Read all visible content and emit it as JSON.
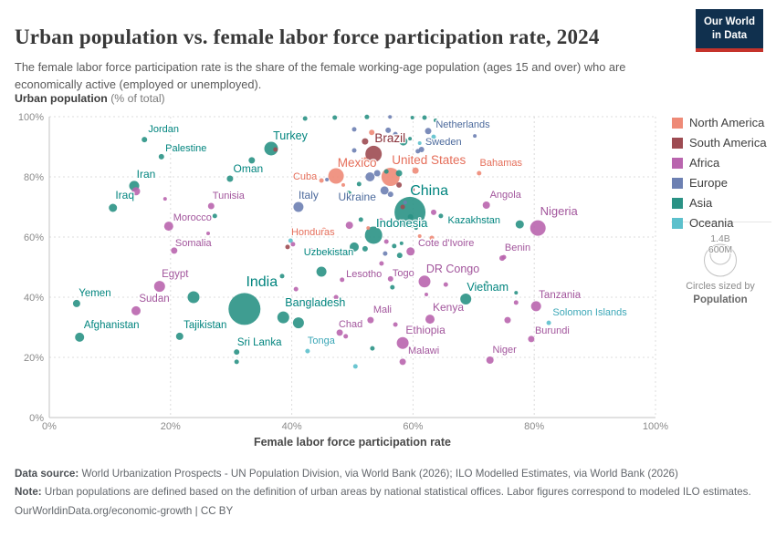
{
  "header": {
    "title": "Urban population vs. female labor force participation rate, 2024",
    "subtitle": "The female labor force participation rate is the share of the female working-age population (ages 15 and over) who are economically active (employed or unemployed)."
  },
  "logo": {
    "line1": "Our World",
    "line2": "in Data",
    "bg_color": "#10304e",
    "bar_color": "#c5332b"
  },
  "y_axis_title": {
    "bold": "Urban population",
    "rest": " (% of total)"
  },
  "regions": {
    "na": {
      "label": "North America",
      "fill": "#EE8A77",
      "text": "#E56E5A"
    },
    "sa": {
      "label": "South America",
      "fill": "#9D4B52",
      "text": "#883039"
    },
    "af": {
      "label": "Africa",
      "fill": "#B965AE",
      "text": "#A2559C"
    },
    "eu": {
      "label": "Europe",
      "fill": "#6D80B2",
      "text": "#4C6A9C"
    },
    "as": {
      "label": "Asia",
      "fill": "#2A9285",
      "text": "#00847E"
    },
    "oc": {
      "label": "Oceania",
      "fill": "#5CC0CC",
      "text": "#3BA7B7"
    }
  },
  "legend": {
    "items": [
      {
        "key": "na",
        "label": "North America"
      },
      {
        "key": "sa",
        "label": "South America"
      },
      {
        "key": "af",
        "label": "Africa"
      },
      {
        "key": "eu",
        "label": "Europe"
      },
      {
        "key": "as",
        "label": "Asia"
      },
      {
        "key": "oc",
        "label": "Oceania"
      }
    ]
  },
  "size_legend": {
    "big_label": "1.4B",
    "small_label": "600M",
    "caption_line1": "Circles sized by",
    "caption_line2": "Population"
  },
  "chart_data": {
    "type": "scatter",
    "title": "Urban population vs. female labor force participation rate, 2024",
    "xlabel": "Female labor force participation rate",
    "ylabel": "Urban population (% of total)",
    "xlim": [
      0,
      100
    ],
    "ylim": [
      0,
      100
    ],
    "xticks": [
      0,
      20,
      40,
      60,
      80,
      100
    ],
    "yticks": [
      0,
      20,
      40,
      60,
      80,
      100
    ],
    "tick_suffix": "%",
    "grid": "dashed",
    "legend_position": "right",
    "point_format": [
      "country",
      "x_flfp_pct",
      "y_urban_pct",
      "radius_px",
      "region",
      "label_dx",
      "label_dy",
      "label_font_px"
    ],
    "points": [
      [
        "Jordan",
        15.7,
        92.4,
        3,
        "as",
        21,
        -8,
        11
      ],
      [
        "Palestine",
        18.5,
        86.7,
        3,
        "as",
        27,
        -6,
        11
      ],
      [
        "Iran",
        14.0,
        77.0,
        5.5,
        "as",
        13,
        -9,
        12
      ],
      [
        "Iraq",
        10.5,
        69.7,
        4.5,
        "as",
        13,
        -10,
        12
      ],
      [
        "Oman",
        29.8,
        79.4,
        3.5,
        "as",
        20,
        -7,
        12
      ],
      [
        "Tunisia",
        26.7,
        70.3,
        3.5,
        "af",
        19,
        -8,
        11
      ],
      [
        "Morocco",
        19.7,
        63.6,
        5,
        "af",
        26,
        -6,
        11
      ],
      [
        "Somalia",
        20.6,
        55.5,
        3.5,
        "af",
        21,
        -5,
        11
      ],
      [
        "Turkey",
        36.6,
        89.4,
        7.5,
        "as",
        21,
        -10,
        12.5
      ],
      [
        "Cuba",
        44.9,
        78.8,
        2.5,
        "na",
        -18,
        -1,
        11
      ],
      [
        "Mexico",
        47.3,
        80.3,
        8.5,
        "na",
        23,
        -10,
        13.5
      ],
      [
        "Italy",
        41.1,
        70.0,
        5.5,
        "eu",
        11,
        -9,
        12
      ],
      [
        "Ukraine",
        55.3,
        75.5,
        4.5,
        "eu",
        -30,
        11,
        12
      ],
      [
        "Honduras",
        45.3,
        62.4,
        2.5,
        "na",
        -12,
        6,
        11
      ],
      [
        "Uzbekistan",
        50.3,
        56.7,
        5,
        "as",
        -28,
        9,
        11
      ],
      [
        "Brazil",
        53.5,
        87.6,
        9,
        "sa",
        18,
        -13,
        13.5
      ],
      [
        "United States",
        56.3,
        80.0,
        10,
        "na",
        42,
        -14,
        13.5
      ],
      [
        "Netherlands",
        62.5,
        95.2,
        3.5,
        "eu",
        38,
        -4,
        11
      ],
      [
        "Sweden",
        61.4,
        89.1,
        3,
        "eu",
        24,
        -5,
        11
      ],
      [
        "Bahamas",
        70.9,
        81.2,
        2.5,
        "na",
        24,
        -8,
        11
      ],
      [
        "China",
        59.5,
        68.2,
        17,
        "as",
        21,
        -19,
        16
      ],
      [
        "Angola",
        72.1,
        70.6,
        4,
        "af",
        21,
        -8,
        11
      ],
      [
        "Nigeria",
        80.6,
        63.0,
        8.5,
        "af",
        23,
        -14,
        13
      ],
      [
        "Kazakhstan",
        77.6,
        64.2,
        4.5,
        "as",
        -50,
        -1,
        11
      ],
      [
        "Indonesia",
        53.5,
        60.6,
        9.5,
        "as",
        31,
        -9,
        13
      ],
      [
        "Cote d'Ivoire",
        59.6,
        55.2,
        4.5,
        "af",
        39,
        -6,
        11
      ],
      [
        "Benin",
        74.7,
        53.0,
        3,
        "af",
        17,
        -8,
        11
      ],
      [
        "DR Congo",
        61.9,
        45.2,
        6.5,
        "af",
        31,
        -10,
        12.5
      ],
      [
        "Vietnam",
        68.7,
        39.4,
        6,
        "as",
        24,
        -9,
        12.5
      ],
      [
        "Kenya",
        62.8,
        32.7,
        5,
        "af",
        20,
        -9,
        12
      ],
      [
        "Tanzania",
        80.3,
        37.0,
        5.5,
        "af",
        26,
        -9,
        11.5
      ],
      [
        "Solomon Islands",
        82.4,
        31.5,
        2.5,
        "oc",
        45,
        -8,
        11
      ],
      [
        "Burundi",
        79.5,
        26.1,
        3.5,
        "af",
        23,
        -6,
        11
      ],
      [
        "Niger",
        72.7,
        19.1,
        4,
        "af",
        16,
        -8,
        11
      ],
      [
        "Malawi",
        58.3,
        18.5,
        3.5,
        "af",
        23,
        -9,
        11
      ],
      [
        "Ethiopia",
        58.3,
        24.8,
        6.5,
        "af",
        25,
        -10,
        12
      ],
      [
        "Mali",
        53.0,
        32.4,
        3.5,
        "af",
        13,
        -8,
        11
      ],
      [
        "Togo",
        56.3,
        46.1,
        3,
        "af",
        14,
        -3,
        11
      ],
      [
        "Lesotho",
        48.3,
        45.8,
        2.5,
        "af",
        24,
        -3,
        11
      ],
      [
        "Egypt",
        18.2,
        43.6,
        6,
        "af",
        17,
        -10,
        11.5
      ],
      [
        "Yemen",
        4.5,
        37.9,
        4,
        "as",
        20,
        -8,
        11.5
      ],
      [
        "Sudan",
        14.3,
        35.5,
        5,
        "af",
        20,
        -10,
        11.5
      ],
      [
        "Afghanistan",
        5.0,
        26.7,
        5,
        "as",
        35,
        -10,
        11.5
      ],
      [
        "Tajikistan",
        21.5,
        27.0,
        4,
        "as",
        28,
        -9,
        11.5
      ],
      [
        "India",
        32.2,
        36.1,
        17.5,
        "as",
        19,
        -25,
        16
      ],
      [
        "Sri Lanka",
        30.9,
        21.8,
        3,
        "as",
        25,
        -7,
        11.5
      ],
      [
        "Bangladesh",
        38.6,
        33.3,
        6.5,
        "as",
        35,
        -12,
        12.5
      ],
      [
        "Tonga",
        42.6,
        22.1,
        2.5,
        "oc",
        15,
        -8,
        11
      ],
      [
        "Chad",
        47.9,
        28.2,
        3.5,
        "af",
        12,
        -6,
        11
      ],
      [
        "",
        42.2,
        99.4,
        2.5,
        "as"
      ],
      [
        "",
        47.1,
        99.7,
        2.5,
        "as"
      ],
      [
        "",
        52.4,
        99.9,
        2.5,
        "as"
      ],
      [
        "",
        56.2,
        99.9,
        2,
        "eu"
      ],
      [
        "",
        59.9,
        99.7,
        2,
        "as"
      ],
      [
        "",
        61.9,
        99.7,
        2.5,
        "as"
      ],
      [
        "",
        63.7,
        98.8,
        2,
        "as"
      ],
      [
        "",
        70.2,
        93.6,
        2,
        "eu"
      ],
      [
        "",
        50.3,
        95.8,
        2.5,
        "eu"
      ],
      [
        "",
        53.2,
        94.8,
        3,
        "na"
      ],
      [
        "",
        55.9,
        95.5,
        3,
        "eu"
      ],
      [
        "",
        57.1,
        94.2,
        2.5,
        "eu"
      ],
      [
        "",
        58.4,
        91.8,
        4.5,
        "as"
      ],
      [
        "",
        59.5,
        92.7,
        2,
        "as"
      ],
      [
        "",
        52.1,
        91.8,
        3.5,
        "sa"
      ],
      [
        "",
        50.3,
        88.8,
        2.5,
        "eu"
      ],
      [
        "",
        52.1,
        85.8,
        2.5,
        "na"
      ],
      [
        "",
        60.8,
        88.5,
        2.5,
        "eu"
      ],
      [
        "",
        37.3,
        89.1,
        2.5,
        "sa"
      ],
      [
        "",
        61.1,
        91.2,
        2,
        "oc"
      ],
      [
        "",
        63.4,
        93.3,
        2.5,
        "oc"
      ],
      [
        "",
        60.4,
        82.1,
        3.5,
        "na"
      ],
      [
        "",
        52.9,
        80.0,
        5,
        "eu"
      ],
      [
        "",
        54.1,
        81.2,
        3.5,
        "eu"
      ],
      [
        "",
        55.6,
        81.8,
        2.5,
        "as"
      ],
      [
        "",
        57.7,
        81.2,
        3.5,
        "as"
      ],
      [
        "",
        51.1,
        77.6,
        2.5,
        "as"
      ],
      [
        "",
        49.4,
        74.5,
        3,
        "as"
      ],
      [
        "",
        56.3,
        74.2,
        3,
        "eu"
      ],
      [
        "",
        57.7,
        77.3,
        3,
        "sa"
      ],
      [
        "",
        59.9,
        75.8,
        2.5,
        "sa"
      ],
      [
        "",
        45.8,
        79.1,
        2,
        "eu"
      ],
      [
        "",
        48.5,
        77.3,
        2,
        "na"
      ],
      [
        "",
        33.4,
        85.5,
        3.5,
        "as"
      ],
      [
        "",
        14.3,
        75.2,
        4.5,
        "af"
      ],
      [
        "",
        19.1,
        72.7,
        2,
        "af"
      ],
      [
        "",
        27.3,
        67.0,
        2.5,
        "as"
      ],
      [
        "",
        26.2,
        61.2,
        2,
        "af"
      ],
      [
        "",
        63.4,
        68.2,
        3,
        "af"
      ],
      [
        "",
        64.6,
        67.0,
        2.5,
        "as"
      ],
      [
        "",
        58.3,
        70.0,
        2.5,
        "sa"
      ],
      [
        "",
        58.7,
        71.5,
        2,
        "eu"
      ],
      [
        "",
        49.5,
        63.9,
        4,
        "af"
      ],
      [
        "",
        51.4,
        65.8,
        2.5,
        "as"
      ],
      [
        "",
        52.6,
        63.0,
        2,
        "na"
      ],
      [
        "",
        54.7,
        65.5,
        2.5,
        "af"
      ],
      [
        "",
        59.6,
        66.7,
        3,
        "as"
      ],
      [
        "",
        60.5,
        63.0,
        2,
        "as"
      ],
      [
        "",
        61.1,
        60.3,
        2,
        "na"
      ],
      [
        "",
        63.1,
        59.7,
        2.5,
        "na"
      ],
      [
        "",
        52.1,
        56.1,
        3,
        "as"
      ],
      [
        "",
        55.6,
        58.5,
        2.5,
        "af"
      ],
      [
        "",
        56.9,
        57.0,
        2.5,
        "as"
      ],
      [
        "",
        58.1,
        57.9,
        2,
        "as"
      ],
      [
        "",
        57.8,
        53.9,
        3,
        "as"
      ],
      [
        "",
        55.4,
        54.5,
        2.5,
        "eu"
      ],
      [
        "",
        54.8,
        51.2,
        2.5,
        "af"
      ],
      [
        "",
        39.8,
        58.8,
        2.5,
        "oc"
      ],
      [
        "",
        39.3,
        56.7,
        2.5,
        "sa"
      ],
      [
        "",
        40.2,
        57.6,
        2.5,
        "af"
      ],
      [
        "",
        43.2,
        55.8,
        2,
        "af"
      ],
      [
        "",
        23.8,
        40.0,
        6.5,
        "as"
      ],
      [
        "",
        44.9,
        48.5,
        5.5,
        "as"
      ],
      [
        "",
        38.4,
        47.0,
        2.5,
        "as"
      ],
      [
        "",
        40.7,
        42.7,
        2.5,
        "af"
      ],
      [
        "",
        59.2,
        47.3,
        1.5,
        "na"
      ],
      [
        "",
        56.6,
        43.3,
        2.5,
        "as"
      ],
      [
        "",
        65.4,
        44.2,
        2.5,
        "af"
      ],
      [
        "",
        62.2,
        40.9,
        2,
        "af"
      ],
      [
        "",
        72.1,
        44.8,
        2,
        "as"
      ],
      [
        "",
        75.0,
        53.3,
        2.5,
        "af"
      ],
      [
        "",
        77.0,
        41.5,
        2,
        "as"
      ],
      [
        "",
        77.0,
        38.2,
        2.5,
        "af"
      ],
      [
        "",
        75.6,
        32.4,
        3.5,
        "af"
      ],
      [
        "",
        57.1,
        30.9,
        2.5,
        "af"
      ],
      [
        "",
        41.1,
        31.5,
        6,
        "as"
      ],
      [
        "",
        42.8,
        38.5,
        2.5,
        "af"
      ],
      [
        "",
        47.3,
        40.0,
        2.5,
        "af"
      ],
      [
        "",
        48.9,
        27.0,
        2.5,
        "af"
      ],
      [
        "",
        53.3,
        23.0,
        2.5,
        "as"
      ],
      [
        "",
        50.5,
        17.0,
        2.5,
        "oc"
      ],
      [
        "",
        30.9,
        18.5,
        2.5,
        "as"
      ]
    ]
  },
  "footer": {
    "source_label": "Data source:",
    "source_text": " World Urbanization Prospects - UN Population Division, via World Bank (2026); ILO Modelled Estimates, via World Bank (2026)",
    "note_label": "Note:",
    "note_text": " Urban populations are defined based on the definition of urban areas by national statistical offices. Labor figures correspond to modeled ILO estimates.",
    "link_text": "OurWorldinData.org/economic-growth | CC BY"
  }
}
